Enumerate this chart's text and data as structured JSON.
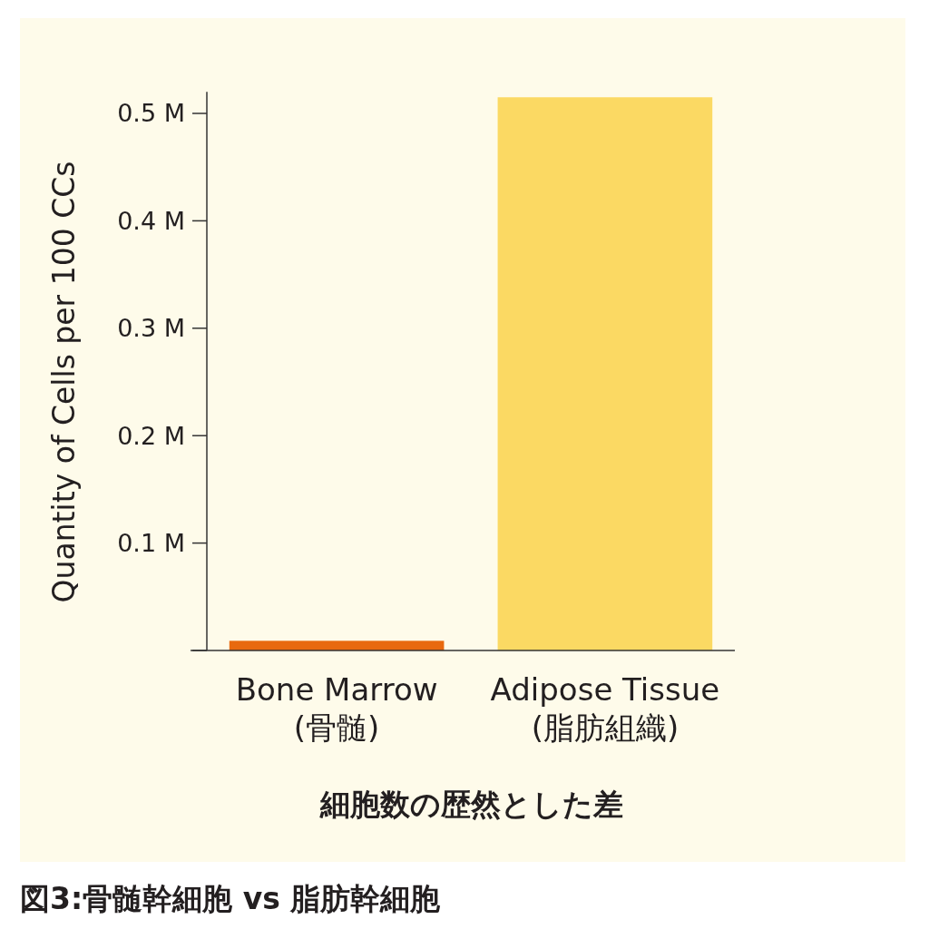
{
  "chart_data": {
    "type": "bar",
    "xlabel": "細胞数の歴然とした差",
    "ylabel": "Quantity of Cells per 100 CCs",
    "categories": [
      "Bone Marrow\n(骨髄)",
      "Adipose Tissue\n(脂肪組織)"
    ],
    "values": [
      0.009,
      0.515
    ],
    "colors": [
      "#e8690f",
      "#fbd963"
    ],
    "ylim": [
      0,
      0.52
    ],
    "yticks": [
      {
        "value": 0,
        "label": null
      },
      {
        "value": 0.1,
        "label": "0.1 M"
      },
      {
        "value": 0.2,
        "label": "0.2 M"
      },
      {
        "value": 0.3,
        "label": "0.3 M"
      },
      {
        "value": 0.4,
        "label": "0.4 M"
      },
      {
        "value": 0.5,
        "label": "0.5 M"
      }
    ],
    "grid": false,
    "annotations": [
      "図3:骨髄幹細胞 vs 脂肪幹細胞"
    ]
  }
}
